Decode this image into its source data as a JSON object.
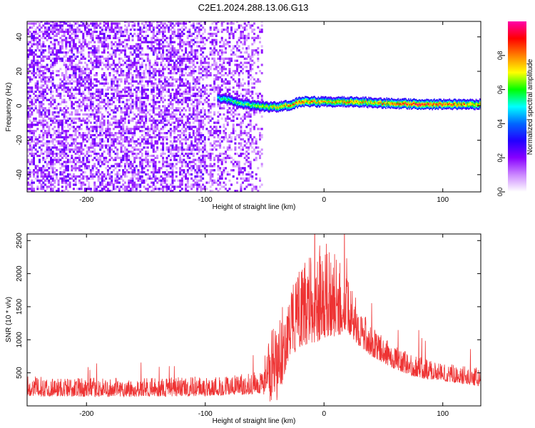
{
  "title": "C2E1.2024.288.13.06.G13",
  "colors": {
    "snr_line": "#ee3333",
    "spectrum_noise": "#7a2bd8",
    "spectrum_signal": "#22cc22",
    "spectrum_peak": "#ff2020"
  },
  "chart_data": [
    {
      "type": "heatmap",
      "title": "C2E1.2024.288.13.06.G13",
      "xlabel": "Height of straight line (km)",
      "ylabel": "Frequency (Hz)",
      "xlim": [
        -250,
        132
      ],
      "ylim": [
        -50,
        49
      ],
      "xticks": [
        -200,
        -100,
        0,
        100
      ],
      "yticks": [
        -40,
        -20,
        0,
        20,
        40
      ],
      "colorbar": {
        "label": "Normalized spectral amplitude",
        "range": [
          0.0,
          1.0
        ],
        "ticks": [
          "0.0",
          "0.2",
          "0.4",
          "0.6",
          "0.8"
        ],
        "tick_values": [
          0.0,
          0.2,
          0.4,
          0.6,
          0.8
        ],
        "colormap": [
          "#ffffff",
          "#cc88ff",
          "#8800ff",
          "#2200ff",
          "#0066ff",
          "#00ffff",
          "#00ff00",
          "#ffff00",
          "#ff8000",
          "#ff0000",
          "#ff00aa"
        ]
      },
      "noise_region": {
        "x_range": [
          -250,
          -52
        ],
        "freq_range": [
          -50,
          49
        ],
        "amplitude": [
          0.05,
          0.25
        ]
      },
      "signal_track": {
        "x": [
          -90,
          -80,
          -70,
          -60,
          -50,
          -40,
          -30,
          -20,
          -10,
          0,
          10,
          20,
          40,
          60,
          80,
          100,
          120,
          132
        ],
        "freq": [
          4,
          3,
          1,
          0,
          -1,
          -1,
          0,
          2,
          2,
          2,
          2,
          2,
          1.5,
          1,
          0.5,
          0.5,
          0.5,
          0.5
        ],
        "amplitude": [
          0.55,
          0.6,
          0.6,
          0.65,
          0.7,
          0.75,
          0.8,
          0.85,
          0.8,
          0.75,
          0.75,
          0.8,
          0.75,
          0.85,
          0.9,
          0.85,
          0.8,
          0.8
        ]
      }
    },
    {
      "type": "line",
      "xlabel": "Height of straight line (km)",
      "ylabel": "SNR (10 * v/v)",
      "xlim": [
        -250,
        132
      ],
      "ylim": [
        0,
        2600
      ],
      "xticks": [
        -200,
        -100,
        0,
        100
      ],
      "yticks": [
        500,
        1000,
        1500,
        2000,
        2500
      ],
      "envelope": {
        "x": [
          -250,
          -200,
          -150,
          -100,
          -70,
          -60,
          -52,
          -50,
          -45,
          -40,
          -35,
          -30,
          -20,
          -10,
          0,
          10,
          20,
          30,
          40,
          60,
          80,
          100,
          120,
          132
        ],
        "low": [
          150,
          140,
          140,
          150,
          170,
          180,
          200,
          150,
          60,
          50,
          350,
          700,
          900,
          950,
          1000,
          1050,
          1100,
          900,
          750,
          550,
          420,
          380,
          320,
          300
        ],
        "high": [
          450,
          420,
          420,
          450,
          480,
          500,
          550,
          850,
          1100,
          1300,
          1500,
          1700,
          2100,
          2300,
          2500,
          2300,
          1900,
          1500,
          1200,
          900,
          750,
          650,
          600,
          600
        ]
      }
    }
  ]
}
